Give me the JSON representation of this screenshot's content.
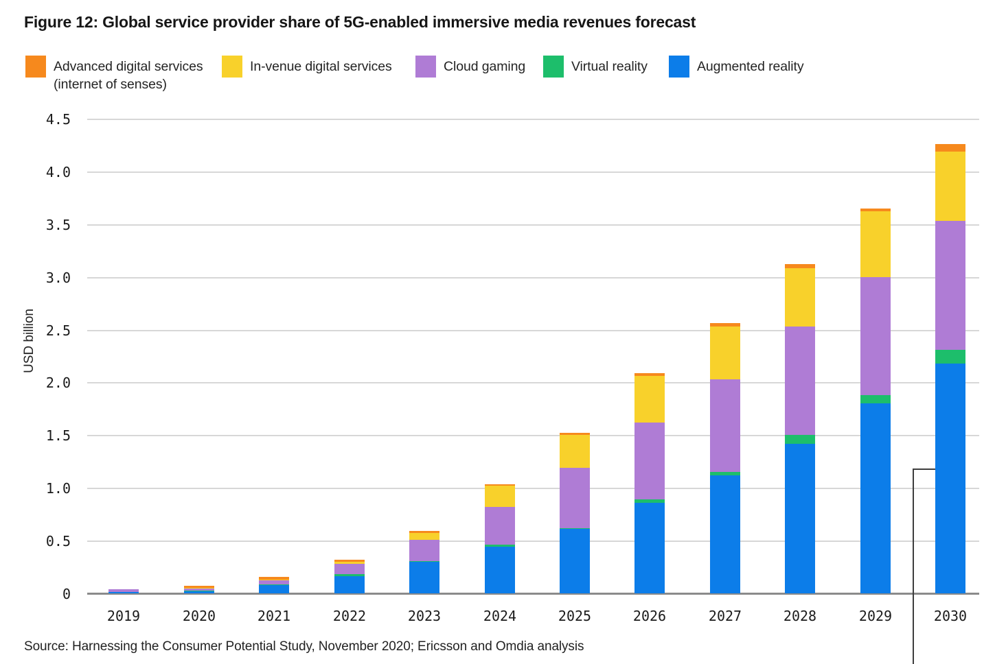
{
  "title": "Figure 12: Global service provider share of 5G-enabled immersive media revenues forecast",
  "source": "Source: Harnessing the Consumer Potential Study, November 2020; Ericsson and Omdia analysis",
  "legend": [
    {
      "label": "Advanced digital services",
      "label2": "(internet of senses)",
      "color": "#F6891D"
    },
    {
      "label": "In-venue digital services",
      "label2": "",
      "color": "#F8D12B"
    },
    {
      "label": "Cloud gaming",
      "label2": "",
      "color": "#AF7CD5"
    },
    {
      "label": "Virtual reality",
      "label2": "",
      "color": "#1DBE6B"
    },
    {
      "label": "Augmented reality",
      "label2": "",
      "color": "#0C7DE9"
    }
  ],
  "chart_data": {
    "type": "bar",
    "stacked": true,
    "title": "Figure 12: Global service provider share of 5G-enabled immersive media revenues forecast",
    "xlabel": "",
    "ylabel": "USD billion",
    "ylim": [
      0,
      4.5
    ],
    "ytick_step": 0.5,
    "yticks": [
      "0",
      "0.5",
      "1.0",
      "1.5",
      "2.0",
      "2.5",
      "3.0",
      "3.5",
      "4.0",
      "4.5"
    ],
    "grid": true,
    "legend_position": "top",
    "categories": [
      "2019",
      "2020",
      "2021",
      "2022",
      "2023",
      "2024",
      "2025",
      "2026",
      "2027",
      "2028",
      "2029",
      "2030"
    ],
    "series": [
      {
        "name": "Augmented reality",
        "color": "#0C7DE9",
        "values": [
          0.01,
          0.02,
          0.08,
          0.16,
          0.3,
          0.44,
          0.61,
          0.86,
          1.12,
          1.42,
          1.8,
          2.18
        ]
      },
      {
        "name": "Virtual reality",
        "color": "#1DBE6B",
        "values": [
          0.0,
          0.005,
          0.005,
          0.02,
          0.005,
          0.02,
          0.01,
          0.03,
          0.03,
          0.08,
          0.08,
          0.13
        ]
      },
      {
        "name": "Cloud gaming",
        "color": "#AF7CD5",
        "values": [
          0.03,
          0.02,
          0.04,
          0.1,
          0.2,
          0.36,
          0.57,
          0.73,
          0.88,
          1.03,
          1.12,
          1.22
        ]
      },
      {
        "name": "In-venue digital services",
        "color": "#F8D12B",
        "values": [
          0.0,
          0.005,
          0.005,
          0.02,
          0.07,
          0.2,
          0.31,
          0.44,
          0.5,
          0.55,
          0.62,
          0.66
        ]
      },
      {
        "name": "Advanced digital services (internet of senses)",
        "color": "#F6891D",
        "values": [
          0.0,
          0.02,
          0.025,
          0.02,
          0.02,
          0.015,
          0.02,
          0.025,
          0.03,
          0.04,
          0.03,
          0.07
        ]
      }
    ]
  }
}
